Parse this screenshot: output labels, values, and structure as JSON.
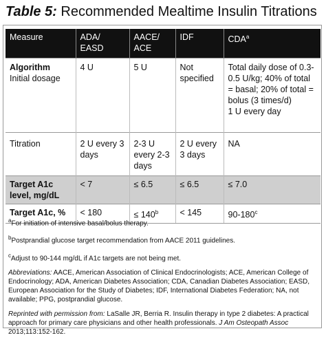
{
  "title": {
    "label": "Table 5:",
    "text": "Recommended Mealtime Insulin Titrations"
  },
  "table": {
    "header": [
      {
        "text": "Measure"
      },
      {
        "text": "ADA/ EASD"
      },
      {
        "text": "AACE/ ACE"
      },
      {
        "text": "IDF"
      },
      {
        "text": "CDA",
        "sup": "a"
      }
    ],
    "rows": [
      [
        {
          "heading": "Algorithm",
          "text": "Initial dosage"
        },
        {
          "text": "4 U"
        },
        {
          "text": "5 U"
        },
        {
          "text": "Not specified"
        },
        {
          "text": "Total daily dose of 0.3-0.5 U/kg; 40% of total = basal; 20% of total = bolus (3 times/d)",
          "extra": "1 U every day"
        }
      ],
      [
        {
          "text": "Titration"
        },
        {
          "text": "2 U every 3 days"
        },
        {
          "text": "2-3 U every 2-3 days"
        },
        {
          "text": "2 U every 3 days"
        },
        {
          "text": "NA"
        }
      ],
      [
        {
          "text": "Target A1c level, mg/dL"
        },
        {
          "text": "< 7"
        },
        {
          "text": "≤ 6.5"
        },
        {
          "text": "≤ 6.5"
        },
        {
          "text": "≤ 7.0"
        }
      ],
      [
        {
          "text": "Target A1c, %"
        },
        {
          "text": "< 180"
        },
        {
          "text": "≤ 140",
          "sup": "b"
        },
        {
          "text": "< 145"
        },
        {
          "text": "90-180",
          "sup": "c"
        }
      ]
    ]
  },
  "footnotes": [
    {
      "marker": "a",
      "text": "For initiation of intensive basal/bolus therapy."
    },
    {
      "marker": "b",
      "text": "Postprandial glucose target recommendation from AACE 2011 guidelines."
    },
    {
      "marker": "c",
      "text": "Adjust to 90-144 mg/dL if A1c targets are not being met."
    }
  ],
  "abbreviations": {
    "label": "Abbreviations:",
    "text": "AACE, American Association of Clinical Endocrinologists; ACE, American College of Endocrinology; ADA, American Diabetes Association; CDA, Canadian Diabetes Association; EASD, European Association for the Study of Diabetes; IDF, International Diabetes Federation; NA, not available; PPG, postprandial glucose."
  },
  "source": {
    "label": "Reprinted with permission from:",
    "text": "LaSalle JR, Berria R. Insulin therapy in type 2 diabetes: A practical approach for primary care physicians and other health professionals.",
    "journal": "J Am Osteopath Assoc",
    "citation": "2013;113:152-162."
  }
}
